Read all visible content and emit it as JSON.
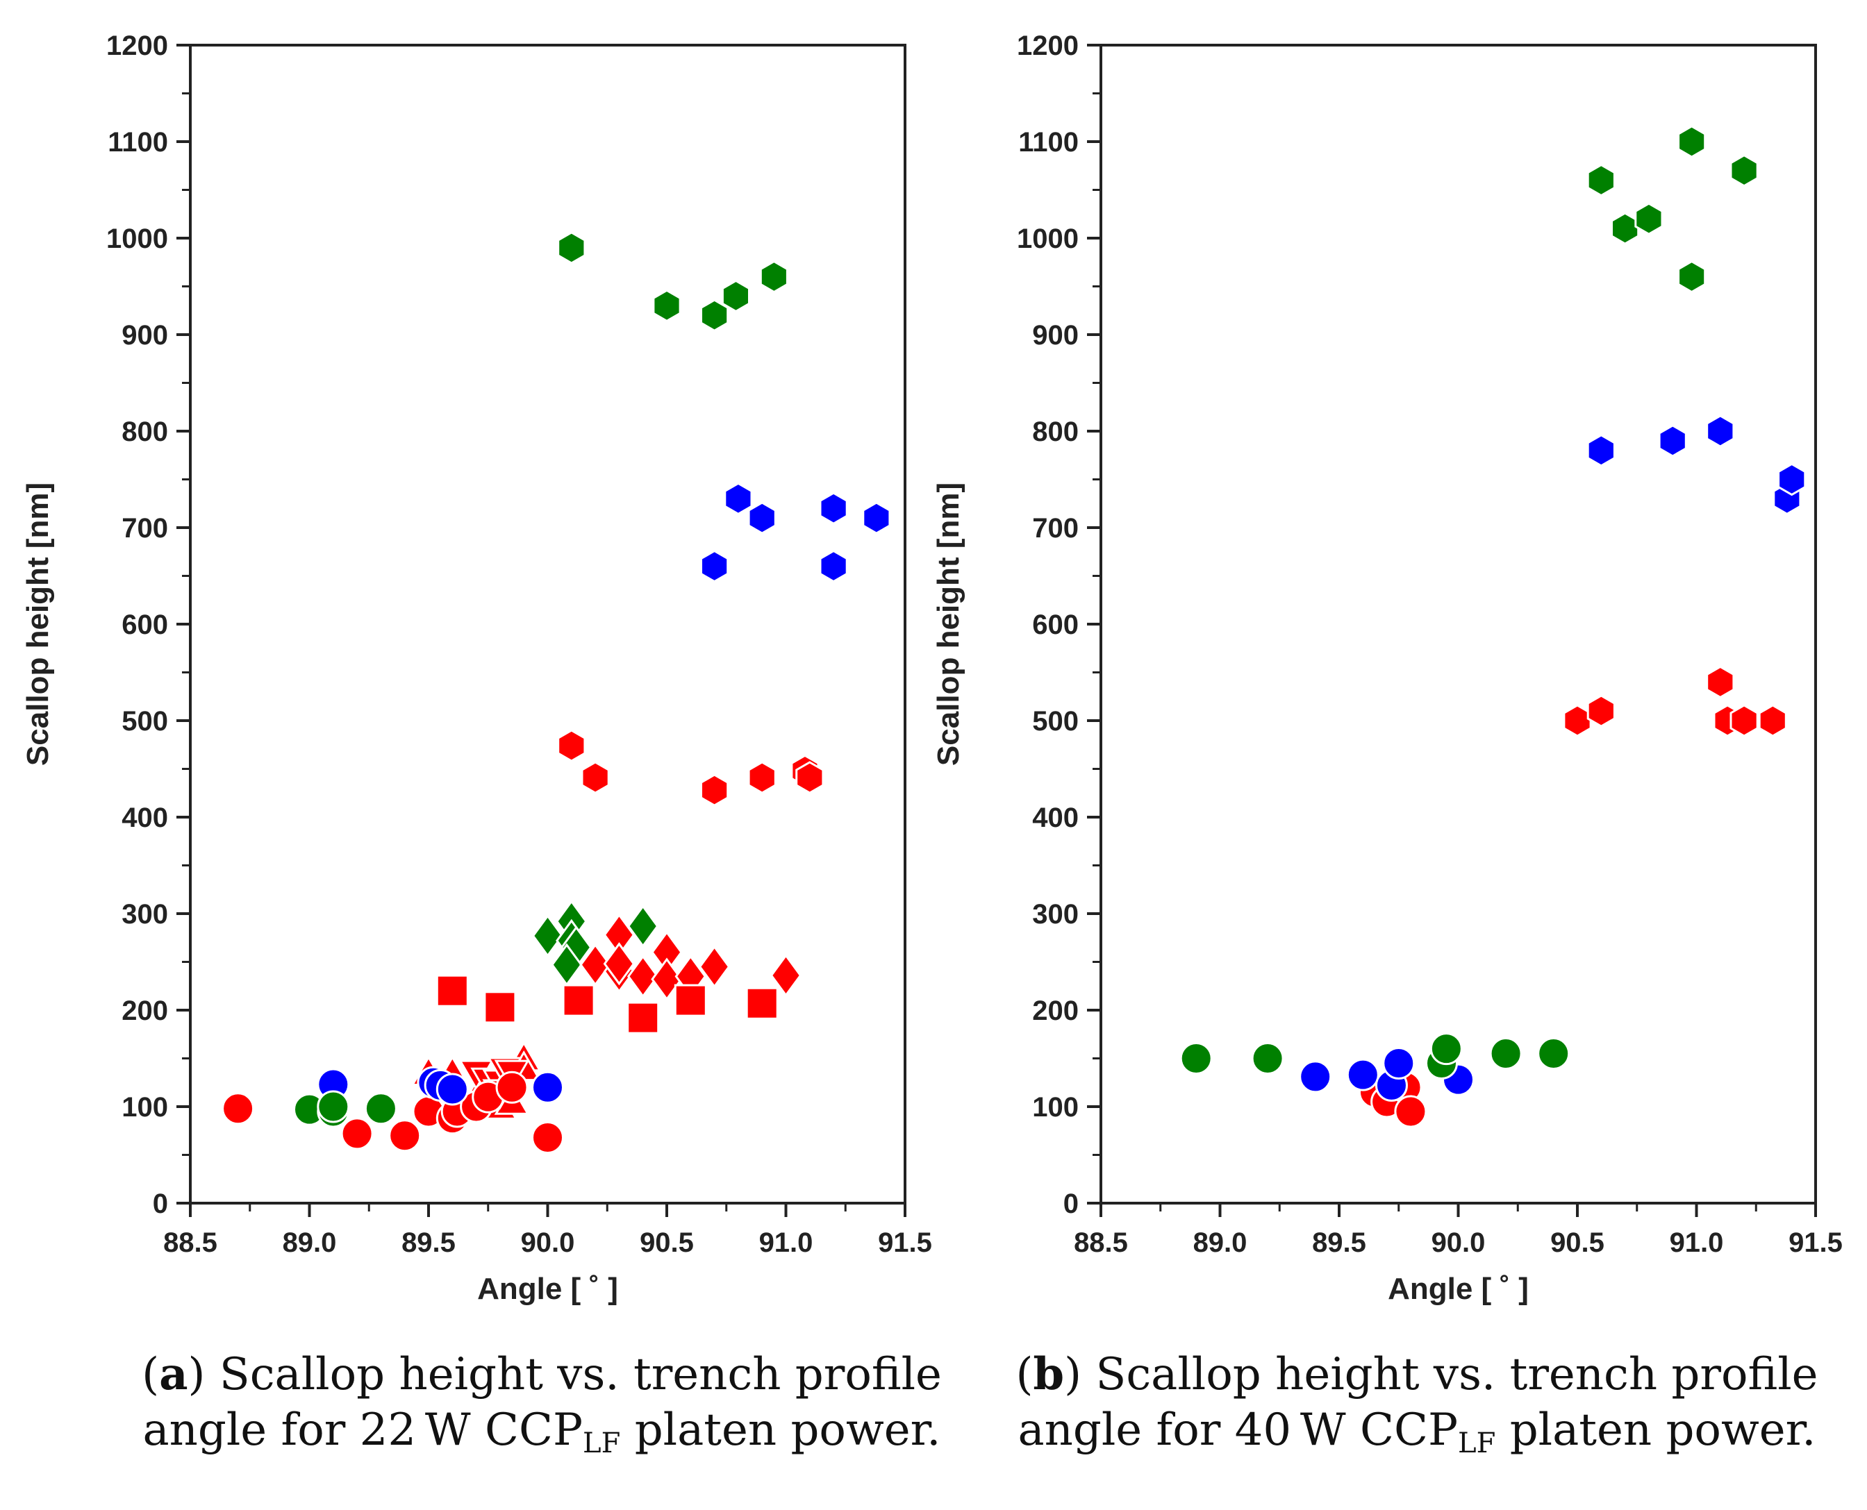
{
  "colors": {
    "red": "#ff0000",
    "blue": "#0000ff",
    "green": "#008000",
    "axis": "#222222"
  },
  "chart_data": [
    {
      "type": "scatter",
      "panel": "a",
      "xlabel": "Angle [ ˚ ]",
      "ylabel": "Scallop height [nm]",
      "xlim": [
        88.5,
        91.5
      ],
      "ylim": [
        0,
        1200
      ],
      "xticks": [
        "88.5",
        "89.0",
        "89.5",
        "90.0",
        "90.5",
        "91.0",
        "91.5"
      ],
      "yticks": [
        "0",
        "100",
        "200",
        "300",
        "400",
        "500",
        "600",
        "700",
        "800",
        "900",
        "1000",
        "1100",
        "1200"
      ],
      "grid": false,
      "caption": {
        "label": "a",
        "text_before": " Scallop height vs. trench profile angle for 22 W CCP",
        "subscript": "LF",
        "text_after": " platen power."
      },
      "series": [
        {
          "marker": "hexagon",
          "color": "green",
          "points": [
            [
              90.1,
              990
            ],
            [
              90.5,
              930
            ],
            [
              90.7,
              920
            ],
            [
              90.79,
              940
            ],
            [
              90.95,
              960
            ]
          ]
        },
        {
          "marker": "hexagon",
          "color": "blue",
          "points": [
            [
              90.7,
              660
            ],
            [
              90.8,
              730
            ],
            [
              90.9,
              710
            ],
            [
              91.2,
              720
            ],
            [
              91.2,
              660
            ],
            [
              91.38,
              710
            ]
          ]
        },
        {
          "marker": "hexagon",
          "color": "red",
          "points": [
            [
              90.1,
              474
            ],
            [
              90.2,
              441
            ],
            [
              90.7,
              428
            ],
            [
              90.9,
              441
            ],
            [
              91.08,
              448
            ],
            [
              91.1,
              441
            ]
          ]
        },
        {
          "marker": "diamond",
          "color": "green",
          "points": [
            [
              90.0,
              277
            ],
            [
              90.1,
              292
            ],
            [
              90.1,
              272
            ],
            [
              90.12,
              265
            ],
            [
              90.08,
              247
            ],
            [
              90.4,
              287
            ]
          ]
        },
        {
          "marker": "diamond",
          "color": "red",
          "points": [
            [
              90.2,
              247
            ],
            [
              90.3,
              278
            ],
            [
              90.3,
              240
            ],
            [
              90.3,
              248
            ],
            [
              90.4,
              235
            ],
            [
              90.5,
              260
            ],
            [
              90.5,
              232
            ],
            [
              90.6,
              235
            ],
            [
              90.7,
              245
            ],
            [
              91.0,
              236
            ]
          ]
        },
        {
          "marker": "square",
          "color": "red",
          "points": [
            [
              89.6,
              220
            ],
            [
              89.8,
              203
            ],
            [
              90.13,
              210
            ],
            [
              90.4,
              192
            ],
            [
              90.6,
              210
            ],
            [
              90.9,
              207
            ]
          ]
        },
        {
          "marker": "triangle-up",
          "color": "red",
          "points": [
            [
              89.5,
              135
            ],
            [
              89.6,
              135
            ],
            [
              89.7,
              110
            ],
            [
              89.8,
              100
            ],
            [
              89.85,
              105
            ],
            [
              89.9,
              150
            ],
            [
              89.9,
              140
            ]
          ]
        },
        {
          "marker": "triangle-down",
          "color": "red",
          "points": [
            [
              89.7,
              135
            ],
            [
              89.75,
              127
            ],
            [
              89.8,
              125
            ],
            [
              89.82,
              138
            ],
            [
              89.85,
              135
            ],
            [
              89.8,
              115
            ]
          ]
        },
        {
          "marker": "circle",
          "color": "red",
          "points": [
            [
              88.7,
              98
            ],
            [
              89.2,
              72
            ],
            [
              89.4,
              70
            ],
            [
              89.5,
              95
            ],
            [
              89.6,
              88
            ],
            [
              89.62,
              95
            ],
            [
              89.7,
              100
            ],
            [
              89.75,
              110
            ],
            [
              90.0,
              68
            ],
            [
              89.85,
              120
            ]
          ]
        },
        {
          "marker": "circle",
          "color": "blue",
          "points": [
            [
              89.1,
              123
            ],
            [
              89.52,
              125
            ],
            [
              89.55,
              122
            ],
            [
              89.6,
              118
            ],
            [
              90.0,
              120
            ]
          ]
        },
        {
          "marker": "circle",
          "color": "green",
          "points": [
            [
              89.0,
              97
            ],
            [
              89.1,
              95
            ],
            [
              89.1,
              100
            ],
            [
              89.3,
              98
            ]
          ]
        }
      ]
    },
    {
      "type": "scatter",
      "panel": "b",
      "xlabel": "Angle [ ˚ ]",
      "ylabel": "Scallop height [nm]",
      "xlim": [
        88.5,
        91.5
      ],
      "ylim": [
        0,
        1200
      ],
      "xticks": [
        "88.5",
        "89.0",
        "89.5",
        "90.0",
        "90.5",
        "91.0",
        "91.5"
      ],
      "yticks": [
        "0",
        "100",
        "200",
        "300",
        "400",
        "500",
        "600",
        "700",
        "800",
        "900",
        "1000",
        "1100",
        "1200"
      ],
      "grid": false,
      "caption": {
        "label": "b",
        "text_before": " Scallop height vs. trench profile angle for 40 W CCP",
        "subscript": "LF",
        "text_after": " platen power."
      },
      "series": [
        {
          "marker": "hexagon",
          "color": "green",
          "points": [
            [
              90.6,
              1060
            ],
            [
              90.7,
              1010
            ],
            [
              90.8,
              1020
            ],
            [
              90.98,
              1100
            ],
            [
              90.98,
              960
            ],
            [
              91.2,
              1070
            ]
          ]
        },
        {
          "marker": "hexagon",
          "color": "blue",
          "points": [
            [
              90.6,
              780
            ],
            [
              90.9,
              790
            ],
            [
              91.1,
              800
            ],
            [
              91.38,
              730
            ],
            [
              91.4,
              750
            ]
          ]
        },
        {
          "marker": "hexagon",
          "color": "red",
          "points": [
            [
              90.5,
              500
            ],
            [
              90.6,
              510
            ],
            [
              91.1,
              540
            ],
            [
              91.13,
              500
            ],
            [
              91.2,
              500
            ],
            [
              91.32,
              500
            ]
          ]
        },
        {
          "marker": "circle",
          "color": "red",
          "points": [
            [
              89.65,
              115
            ],
            [
              89.7,
              105
            ],
            [
              89.78,
              120
            ],
            [
              89.8,
              95
            ]
          ]
        },
        {
          "marker": "circle",
          "color": "blue",
          "points": [
            [
              89.4,
              131
            ],
            [
              89.6,
              133
            ],
            [
              89.72,
              122
            ],
            [
              89.75,
              145
            ],
            [
              90.0,
              128
            ]
          ]
        },
        {
          "marker": "circle",
          "color": "green",
          "points": [
            [
              88.9,
              150
            ],
            [
              89.2,
              150
            ],
            [
              89.93,
              145
            ],
            [
              89.95,
              160
            ],
            [
              90.2,
              155
            ],
            [
              90.4,
              155
            ]
          ]
        }
      ]
    }
  ]
}
